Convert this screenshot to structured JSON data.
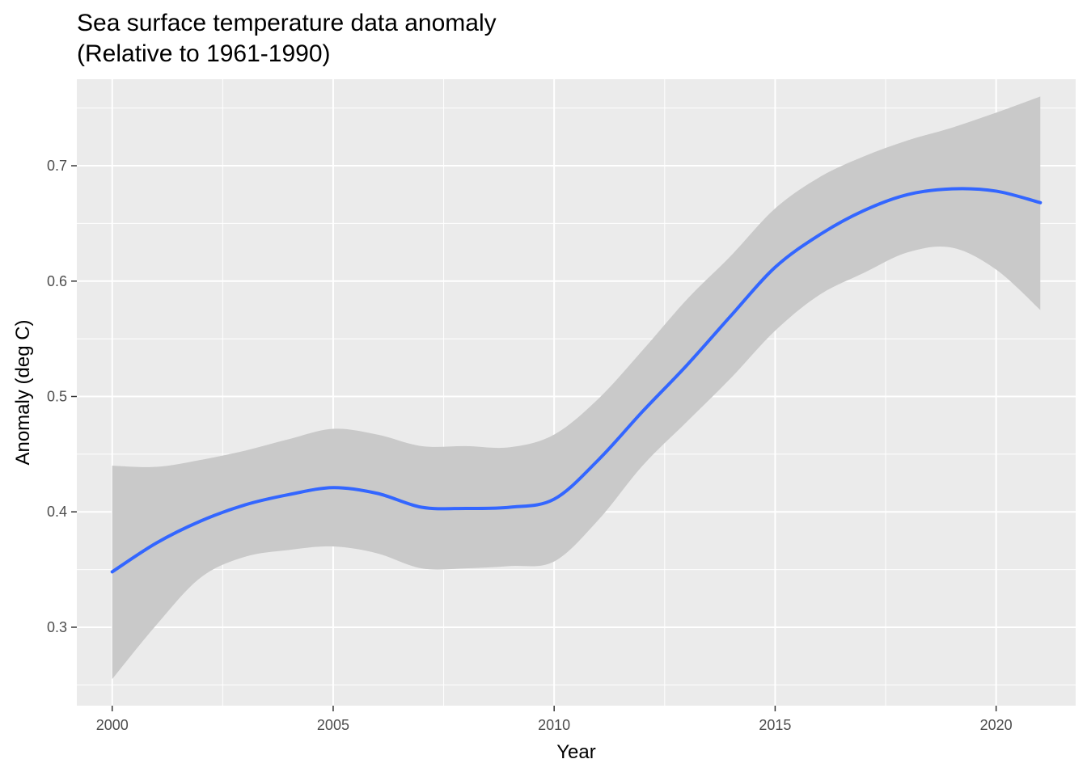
{
  "chart_data": {
    "type": "line",
    "title": "Sea surface temperature data anomaly",
    "subtitle": "(Relative to 1961-1990)",
    "xlabel": "Year",
    "ylabel": "Anomaly (deg C)",
    "x_ticks": [
      2000,
      2005,
      2010,
      2015,
      2020
    ],
    "y_ticks": [
      0.3,
      0.4,
      0.5,
      0.6,
      0.7
    ],
    "xlim": [
      1999.2,
      2021.8
    ],
    "ylim": [
      0.232,
      0.775
    ],
    "grid": true,
    "colors": {
      "line": "#3366FF",
      "ribbon": "#c9c9c9",
      "panel": "#ebebeb",
      "grid": "#ffffff"
    },
    "series": [
      {
        "x": [
          2000,
          2001,
          2002,
          2003,
          2004,
          2005,
          2006,
          2007,
          2008,
          2009,
          2010,
          2011,
          2012,
          2013,
          2014,
          2015,
          2016,
          2017,
          2018,
          2019,
          2020,
          2021
        ],
        "y": [
          0.348,
          0.373,
          0.392,
          0.406,
          0.415,
          0.421,
          0.416,
          0.404,
          0.403,
          0.404,
          0.411,
          0.445,
          0.487,
          0.527,
          0.57,
          0.612,
          0.64,
          0.661,
          0.675,
          0.68,
          0.678,
          0.668
        ],
        "y_low": [
          0.255,
          0.302,
          0.343,
          0.361,
          0.367,
          0.37,
          0.364,
          0.351,
          0.351,
          0.353,
          0.357,
          0.393,
          0.44,
          0.478,
          0.516,
          0.557,
          0.588,
          0.607,
          0.625,
          0.629,
          0.61,
          0.575
        ],
        "y_high": [
          0.44,
          0.439,
          0.445,
          0.453,
          0.463,
          0.472,
          0.467,
          0.457,
          0.457,
          0.456,
          0.467,
          0.498,
          0.54,
          0.584,
          0.622,
          0.663,
          0.69,
          0.708,
          0.722,
          0.733,
          0.746,
          0.76
        ]
      }
    ]
  }
}
